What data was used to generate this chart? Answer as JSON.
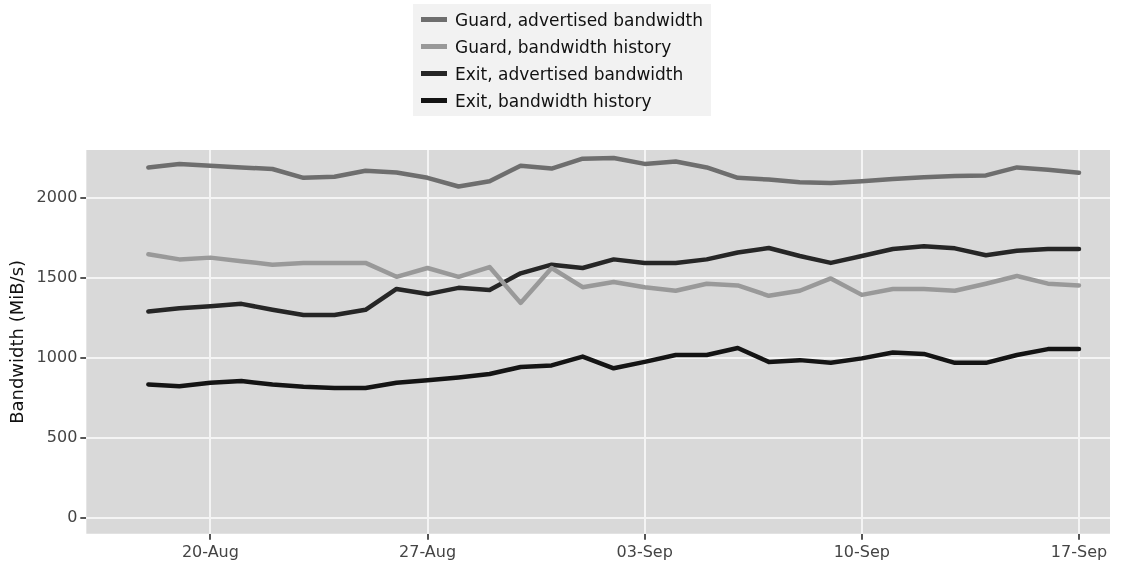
{
  "chart_data": {
    "type": "line",
    "ylabel": "Bandwidth (MiB/s)",
    "x": [
      "--08-18",
      "--08-19",
      "--08-20",
      "--08-21",
      "--08-22",
      "--08-23",
      "--08-24",
      "--08-25",
      "--08-26",
      "--08-27",
      "--08-28",
      "--08-29",
      "--08-30",
      "--08-31",
      "--09-01",
      "--09-02",
      "--09-03",
      "--09-04",
      "--09-05",
      "--09-06",
      "--09-07",
      "--09-08",
      "--09-09",
      "--09-10",
      "--09-11",
      "--09-12",
      "--09-13",
      "--09-14",
      "--09-15",
      "--09-16",
      "--09-17"
    ],
    "series": [
      {
        "name": "Guard, advertised bandwidth",
        "color": "#6e6e6e",
        "values": [
          2191,
          2213,
          2202,
          2191,
          2181,
          2126,
          2133,
          2170,
          2159,
          2126,
          2072,
          2104,
          2202,
          2184,
          2246,
          2250,
          2213,
          2228,
          2191,
          2126,
          2115,
          2098,
          2093,
          2104,
          2119,
          2130,
          2137,
          2141,
          2191,
          2176,
          2158
        ]
      },
      {
        "name": "Guard, bandwidth history",
        "color": "#999999",
        "values": [
          1648,
          1616,
          1627,
          1605,
          1583,
          1594,
          1594,
          1594,
          1507,
          1562,
          1507,
          1568,
          1344,
          1562,
          1442,
          1474,
          1442,
          1420,
          1464,
          1453,
          1388,
          1420,
          1497,
          1394,
          1431,
          1431,
          1420,
          1464,
          1512,
          1464,
          1453
        ]
      },
      {
        "name": "Exit, advertised bandwidth",
        "color": "#262626",
        "values": [
          1290,
          1311,
          1323,
          1338,
          1301,
          1268,
          1268,
          1301,
          1431,
          1399,
          1438,
          1425,
          1529,
          1583,
          1562,
          1616,
          1594,
          1594,
          1616,
          1659,
          1687,
          1637,
          1594,
          1637,
          1681,
          1698,
          1685,
          1642,
          1670,
          1681,
          1681
        ]
      },
      {
        "name": "Exit, bandwidth history",
        "color": "#141414",
        "values": [
          834,
          823,
          845,
          855,
          834,
          819,
          812,
          812,
          845,
          860,
          878,
          899,
          943,
          953,
          1008,
          935,
          975,
          1018,
          1018,
          1062,
          975,
          986,
          969,
          997,
          1034,
          1025,
          969,
          969,
          1018,
          1055,
          1055
        ]
      }
    ],
    "xlim": [
      "--08-16",
      "--09-18"
    ],
    "xticks": [
      {
        "value": "--08-20",
        "label": "20-Aug"
      },
      {
        "value": "--08-27",
        "label": "27-Aug"
      },
      {
        "value": "--09-03",
        "label": "03-Sep"
      },
      {
        "value": "--09-10",
        "label": "10-Sep"
      },
      {
        "value": "--09-17",
        "label": "17-Sep"
      }
    ],
    "ylim": [
      -100,
      2300
    ],
    "yticks": [
      0,
      500,
      1000,
      1500,
      2000
    ],
    "grid": true,
    "legend": "top",
    "marker": "none",
    "line_style": "solid"
  }
}
